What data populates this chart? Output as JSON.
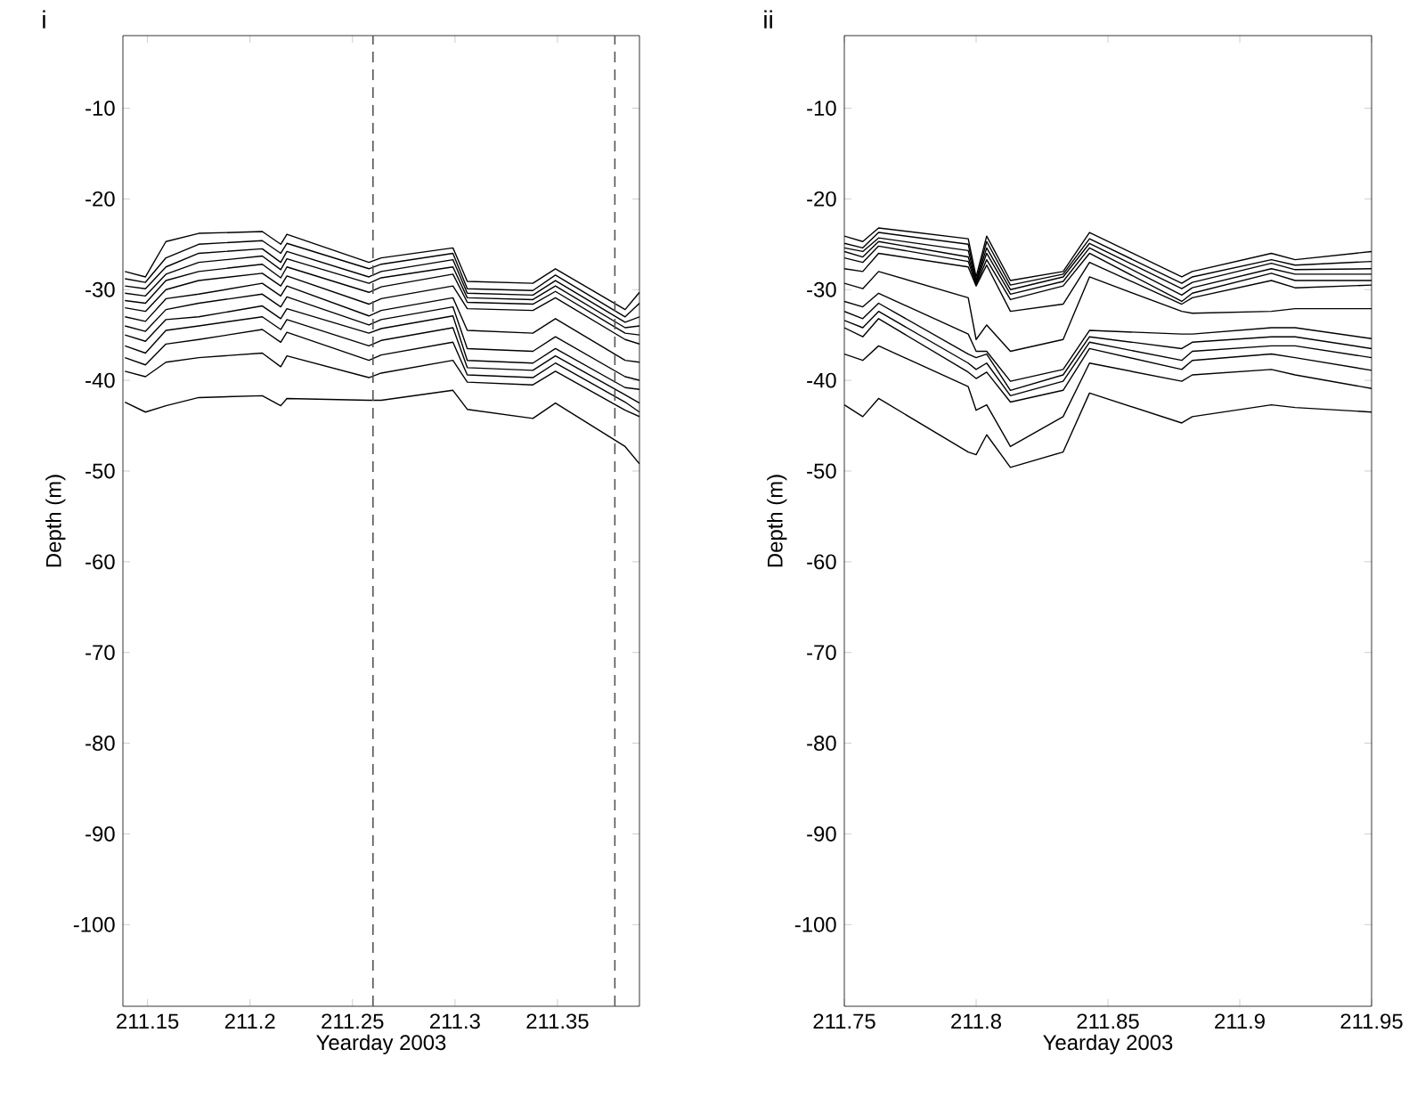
{
  "chart_data": [
    {
      "type": "line",
      "title": "i",
      "xlabel": "Yearday 2003",
      "ylabel": "Depth (m)",
      "x": [
        211.139,
        211.149,
        211.159,
        211.175,
        211.206,
        211.215,
        211.218,
        211.258,
        211.264,
        211.299,
        211.306,
        211.338,
        211.349,
        211.383,
        211.39
      ],
      "xlim": [
        211.138,
        211.39
      ],
      "xticks": [
        211.15,
        211.2,
        211.25,
        211.3,
        211.35
      ],
      "ylim": [
        -109,
        -2
      ],
      "yticks": [
        -100,
        -90,
        -80,
        -70,
        -60,
        -50,
        -40,
        -30,
        -20,
        -10
      ],
      "ref_lines": [
        {
          "axis": "x",
          "value": 211.26,
          "color": "#555555",
          "line_style": "dashed"
        },
        {
          "axis": "x",
          "value": 211.378,
          "color": "#555555",
          "line_style": "dashed"
        }
      ],
      "series": [
        {
          "color": "#000000",
          "values": [
            -28,
            -28.6,
            -24.7,
            -23.8,
            -23.6,
            -25,
            -23.9,
            -27,
            -26.5,
            -25.4,
            -29.1,
            -29.3,
            -27.7,
            -32.2,
            -30.3
          ]
        },
        {
          "color": "#000000",
          "values": [
            -28.8,
            -29.2,
            -26.5,
            -25,
            -24.6,
            -26,
            -24.9,
            -27.7,
            -27.2,
            -26,
            -29.9,
            -30.1,
            -28.4,
            -33,
            -31.5
          ]
        },
        {
          "color": "#000000",
          "values": [
            -29.6,
            -29.9,
            -27.5,
            -26,
            -25.5,
            -27,
            -25.8,
            -28.6,
            -28,
            -26.7,
            -30.4,
            -30.6,
            -29,
            -33.6,
            -33
          ]
        },
        {
          "color": "#000000",
          "values": [
            -30.4,
            -30.7,
            -28.3,
            -27,
            -26.3,
            -27.8,
            -26.6,
            -29.3,
            -28.7,
            -27.5,
            -30.9,
            -31.1,
            -29.6,
            -34.2,
            -34
          ]
        },
        {
          "color": "#000000",
          "values": [
            -31.2,
            -31.5,
            -29,
            -28,
            -27.2,
            -28.7,
            -27.5,
            -30.3,
            -29.7,
            -28.3,
            -31.4,
            -31.6,
            -30.2,
            -34.8,
            -35
          ]
        },
        {
          "color": "#000000",
          "values": [
            -32,
            -32.4,
            -30,
            -29,
            -28.2,
            -29.6,
            -28.5,
            -31.6,
            -31,
            -29.6,
            -32.1,
            -32.3,
            -30.9,
            -35.5,
            -36
          ]
        },
        {
          "color": "#000000",
          "values": [
            -33,
            -33.5,
            -31,
            -30.5,
            -29.3,
            -30.7,
            -29.6,
            -32.9,
            -32.3,
            -30.9,
            -34.5,
            -34.8,
            -33.2,
            -37.8,
            -38
          ]
        },
        {
          "color": "#000000",
          "values": [
            -34,
            -34.6,
            -32.2,
            -31.5,
            -30.5,
            -31.9,
            -30.8,
            -33.9,
            -33.3,
            -31.9,
            -36.5,
            -36.8,
            -35.2,
            -39.6,
            -40
          ]
        },
        {
          "color": "#000000",
          "values": [
            -35,
            -35.7,
            -33.3,
            -33,
            -31.8,
            -33.2,
            -32.1,
            -34.8,
            -34.3,
            -32.9,
            -37.8,
            -38.1,
            -36.5,
            -40.8,
            -41
          ]
        },
        {
          "color": "#000000",
          "values": [
            -36.2,
            -37,
            -34.5,
            -34,
            -33,
            -34.4,
            -33.3,
            -36.2,
            -35.6,
            -34.2,
            -38.6,
            -38.9,
            -37.3,
            -41.6,
            -42.5
          ]
        },
        {
          "color": "#000000",
          "values": [
            -37.5,
            -38.3,
            -36,
            -35.5,
            -34.4,
            -35.8,
            -34.7,
            -37.8,
            -37.2,
            -35.8,
            -39.4,
            -39.7,
            -38.1,
            -42.4,
            -43.5
          ]
        },
        {
          "color": "#000000",
          "values": [
            -39,
            -39.6,
            -38,
            -37.5,
            -37,
            -38.5,
            -37.3,
            -39.7,
            -39.2,
            -37.8,
            -40.2,
            -40.5,
            -39,
            -43.3,
            -44
          ]
        },
        {
          "color": "#000000",
          "values": [
            -42.4,
            -43.5,
            -42.8,
            -41.9,
            -41.7,
            -42.8,
            -42,
            -42.2,
            -42.2,
            -41.1,
            -43.2,
            -44.2,
            -42.5,
            -47.3,
            -49.2
          ]
        }
      ]
    },
    {
      "type": "line",
      "title": "ii",
      "xlabel": "Yearday 2003",
      "ylabel": "Depth (m)",
      "x": [
        211.75,
        211.757,
        211.763,
        211.797,
        211.8,
        211.804,
        211.813,
        211.833,
        211.843,
        211.878,
        211.882,
        211.912,
        211.921,
        211.95
      ],
      "xlim": [
        211.75,
        211.95
      ],
      "xticks": [
        211.75,
        211.8,
        211.85,
        211.9,
        211.95
      ],
      "ylim": [
        -109,
        -2
      ],
      "yticks": [
        -100,
        -90,
        -80,
        -70,
        -60,
        -50,
        -40,
        -30,
        -20,
        -10
      ],
      "series": [
        {
          "color": "#000000",
          "values": [
            -24.1,
            -24.7,
            -23.2,
            -24.4,
            -28.6,
            -24.1,
            -29.0,
            -28.0,
            -23.7,
            -28.6,
            -28.0,
            -26.0,
            -26.7,
            -25.8
          ]
        },
        {
          "color": "#000000",
          "values": [
            -24.9,
            -25.4,
            -23.7,
            -25.0,
            -29.0,
            -24.7,
            -29.5,
            -28.3,
            -24.4,
            -29.3,
            -28.6,
            -26.7,
            -27.3,
            -26.9
          ]
        },
        {
          "color": "#000000",
          "values": [
            -25.4,
            -25.8,
            -24.3,
            -25.7,
            -29.2,
            -25.4,
            -30.0,
            -28.6,
            -24.9,
            -29.9,
            -29.2,
            -27.1,
            -27.8,
            -27.7
          ]
        },
        {
          "color": "#000000",
          "values": [
            -25.8,
            -26.4,
            -24.7,
            -26.4,
            -29.3,
            -26.0,
            -30.5,
            -29.1,
            -25.4,
            -30.6,
            -29.8,
            -27.7,
            -28.3,
            -28.3
          ]
        },
        {
          "color": "#000000",
          "values": [
            -26.5,
            -27.0,
            -25.2,
            -26.9,
            -29.5,
            -26.7,
            -31.1,
            -29.6,
            -26.0,
            -31.3,
            -30.4,
            -28.2,
            -29.0,
            -29.0
          ]
        },
        {
          "color": "#000000",
          "values": [
            -27.7,
            -28.0,
            -26.0,
            -27.5,
            -29.6,
            -27.3,
            -32.4,
            -31.6,
            -27.0,
            -31.6,
            -30.9,
            -29.0,
            -29.8,
            -29.5
          ]
        },
        {
          "color": "#000000",
          "values": [
            -29.3,
            -29.9,
            -28.0,
            -30.9,
            -35.5,
            -33.9,
            -36.8,
            -35.5,
            -28.6,
            -32.4,
            -32.6,
            -32.4,
            -32.1,
            -32.1
          ]
        },
        {
          "color": "#000000",
          "values": [
            -31.3,
            -31.9,
            -30.4,
            -34.9,
            -36.8,
            -36.8,
            -40.1,
            -38.8,
            -34.5,
            -34.9,
            -34.9,
            -34.2,
            -34.2,
            -35.4
          ]
        },
        {
          "color": "#000000",
          "values": [
            -32.4,
            -33.2,
            -31.5,
            -37.1,
            -37.5,
            -37.1,
            -41.1,
            -39.4,
            -35.2,
            -36.5,
            -35.8,
            -35.2,
            -35.2,
            -36.5
          ]
        },
        {
          "color": "#000000",
          "values": [
            -33.4,
            -34.2,
            -32.4,
            -38.1,
            -38.8,
            -38.1,
            -41.7,
            -40.1,
            -35.8,
            -37.8,
            -36.8,
            -36.2,
            -36.2,
            -37.5
          ]
        },
        {
          "color": "#000000",
          "values": [
            -34.2,
            -35.2,
            -33.2,
            -39.1,
            -39.8,
            -39.1,
            -42.4,
            -41.1,
            -36.5,
            -38.8,
            -37.8,
            -37.1,
            -37.5,
            -38.9
          ]
        },
        {
          "color": "#000000",
          "values": [
            -37.1,
            -37.8,
            -36.2,
            -40.7,
            -43.3,
            -42.7,
            -47.3,
            -44.0,
            -38.1,
            -40.1,
            -39.4,
            -38.8,
            -39.4,
            -40.9
          ]
        },
        {
          "color": "#000000",
          "values": [
            -42.7,
            -44.0,
            -42.0,
            -47.9,
            -48.2,
            -46.0,
            -49.6,
            -47.9,
            -41.4,
            -44.7,
            -44.0,
            -42.7,
            -43.0,
            -43.5
          ]
        }
      ]
    }
  ]
}
